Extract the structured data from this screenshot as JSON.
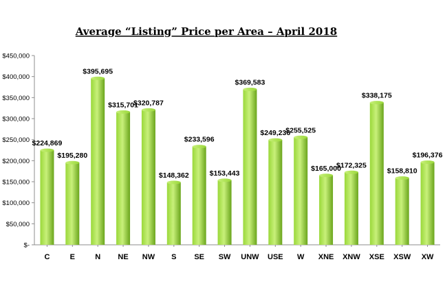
{
  "chart_data": {
    "type": "bar",
    "title": "Average “Listing” Price per Area – April 2018",
    "xlabel": "",
    "ylabel": "",
    "categories": [
      "C",
      "E",
      "N",
      "NE",
      "NW",
      "S",
      "SE",
      "SW",
      "UNW",
      "USE",
      "W",
      "XNE",
      "XNW",
      "XSE",
      "XSW",
      "XW"
    ],
    "values": [
      224869,
      195280,
      395695,
      315701,
      320787,
      148362,
      233596,
      153443,
      369583,
      249236,
      255525,
      165000,
      172325,
      338175,
      158810,
      196376
    ],
    "data_labels": [
      "$224,869",
      "$195,280",
      "$395,695",
      "$315,701",
      "$320,787",
      "$148,362",
      "$233,596",
      "$153,443",
      "$369,583",
      "$249,236",
      "$255,525",
      "$165,000",
      "$172,325",
      "$338,175",
      "$158,810",
      "$196,376"
    ],
    "ylim": [
      0,
      450000
    ],
    "yticks": [
      0,
      50000,
      100000,
      150000,
      200000,
      250000,
      300000,
      350000,
      400000,
      450000
    ],
    "ytick_labels": [
      "$-",
      "$50,000",
      "$100,000",
      "$150,000",
      "$200,000",
      "$250,000",
      "$300,000",
      "$350,000",
      "$400,000",
      "$450,000"
    ],
    "grid": false,
    "legend": "none",
    "colors": {
      "bar_light": "#c8f07a",
      "bar_mid": "#9ad83a",
      "bar_dark": "#6aa51c",
      "axis": "#8c8c8c"
    }
  }
}
